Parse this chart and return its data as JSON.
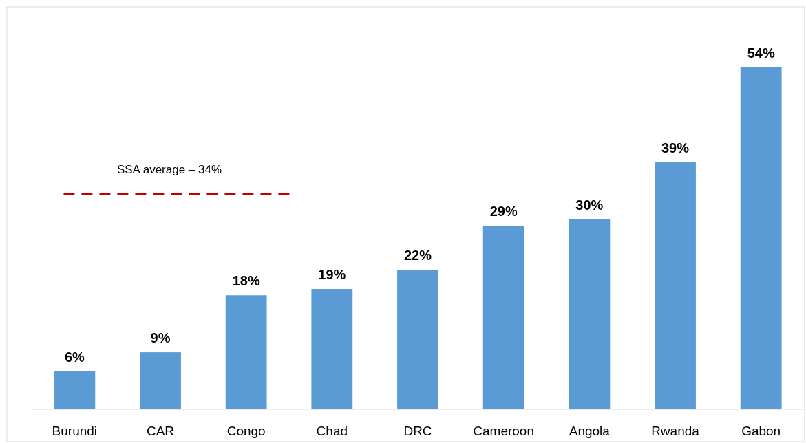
{
  "chart_data": {
    "type": "bar",
    "categories": [
      "Burundi",
      "CAR",
      "Congo",
      "Chad",
      "DRC",
      "Cameroon",
      "Angola",
      "Rwanda",
      "Gabon"
    ],
    "values": [
      6,
      9,
      18,
      19,
      22,
      29,
      30,
      39,
      54
    ],
    "value_labels": [
      "6%",
      "9%",
      "18%",
      "19%",
      "22%",
      "29%",
      "30%",
      "39%",
      "54%"
    ],
    "color": "#5b9bd5",
    "ref_lines": [
      {
        "axis": "y",
        "value": 34,
        "label": "SSA average – 34%",
        "color": "#c00000",
        "line_style": "dashed"
      }
    ]
  }
}
